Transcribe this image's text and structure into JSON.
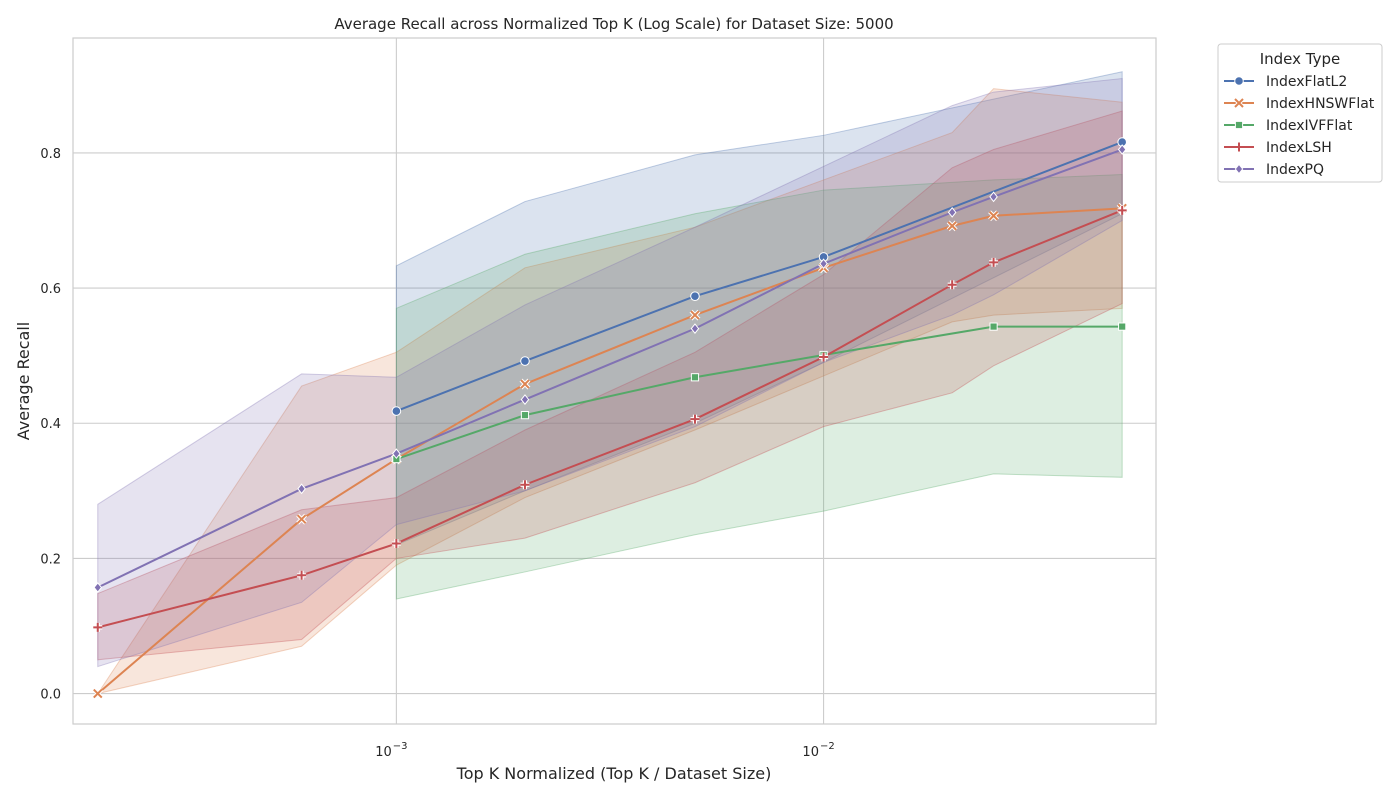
{
  "chart_data": {
    "type": "line",
    "title": "Average Recall across Normalized Top K (Log Scale) for Dataset Size: 5000",
    "xlabel": "Top K Normalized (Top K / Dataset Size)",
    "ylabel": "Average Recall",
    "xscale": "log",
    "xlim": [
      0.000175,
      0.06
    ],
    "ylim": [
      -0.045,
      0.97
    ],
    "x_ticks": [
      {
        "value": 0.001,
        "base": "10",
        "exp": "−3"
      },
      {
        "value": 0.01,
        "base": "10",
        "exp": "−2"
      }
    ],
    "y_ticks": [
      {
        "value": 0.0,
        "label": "0.0"
      },
      {
        "value": 0.2,
        "label": "0.2"
      },
      {
        "value": 0.4,
        "label": "0.4"
      },
      {
        "value": 0.6,
        "label": "0.6"
      },
      {
        "value": 0.8,
        "label": "0.8"
      }
    ],
    "grid": true,
    "legend": {
      "title": "Index Type",
      "placement": "outside-top-right"
    },
    "series": [
      {
        "name": "IndexFlatL2",
        "color": "#4c72b0",
        "marker": "circle",
        "x": [
          0.001,
          0.002,
          0.005,
          0.01,
          0.05
        ],
        "y": [
          0.418,
          0.492,
          0.588,
          0.646,
          0.816
        ],
        "lower": [
          0.22,
          0.3,
          0.4,
          0.49,
          0.71
        ],
        "upper": [
          0.633,
          0.728,
          0.797,
          0.826,
          0.92
        ]
      },
      {
        "name": "IndexHNSWFlat",
        "color": "#dd8452",
        "marker": "x",
        "x": [
          0.0002,
          0.0006,
          0.001,
          0.002,
          0.005,
          0.01,
          0.02,
          0.025,
          0.05
        ],
        "y": [
          0.0,
          0.258,
          0.347,
          0.458,
          0.56,
          0.63,
          0.692,
          0.707,
          0.718
        ],
        "lower": [
          0.0,
          0.07,
          0.19,
          0.29,
          0.39,
          0.47,
          0.55,
          0.56,
          0.57
        ],
        "upper": [
          0.0,
          0.455,
          0.505,
          0.63,
          0.69,
          0.76,
          0.83,
          0.895,
          0.875
        ]
      },
      {
        "name": "IndexIVFFlat",
        "color": "#55a868",
        "marker": "square",
        "x": [
          0.001,
          0.002,
          0.005,
          0.01,
          0.025,
          0.05
        ],
        "y": [
          0.347,
          0.412,
          0.468,
          0.501,
          0.543,
          0.543
        ],
        "lower": [
          0.14,
          0.18,
          0.235,
          0.27,
          0.325,
          0.32
        ],
        "upper": [
          0.57,
          0.65,
          0.71,
          0.745,
          0.76,
          0.768
        ]
      },
      {
        "name": "IndexLSH",
        "color": "#c44e52",
        "marker": "plus",
        "x": [
          0.0002,
          0.0006,
          0.001,
          0.002,
          0.005,
          0.01,
          0.02,
          0.025,
          0.05
        ],
        "y": [
          0.098,
          0.175,
          0.222,
          0.309,
          0.406,
          0.498,
          0.605,
          0.638,
          0.715
        ],
        "lower": [
          0.05,
          0.08,
          0.2,
          0.23,
          0.312,
          0.395,
          0.445,
          0.485,
          0.577
        ],
        "upper": [
          0.148,
          0.272,
          0.29,
          0.39,
          0.505,
          0.62,
          0.778,
          0.805,
          0.862
        ]
      },
      {
        "name": "IndexPQ",
        "color": "#8172b3",
        "marker": "diamond",
        "x": [
          0.0002,
          0.0006,
          0.001,
          0.002,
          0.005,
          0.01,
          0.02,
          0.025,
          0.05
        ],
        "y": [
          0.157,
          0.303,
          0.355,
          0.435,
          0.54,
          0.636,
          0.712,
          0.735,
          0.805
        ],
        "lower": [
          0.04,
          0.135,
          0.25,
          0.3,
          0.395,
          0.49,
          0.56,
          0.59,
          0.7
        ],
        "upper": [
          0.28,
          0.473,
          0.468,
          0.575,
          0.69,
          0.78,
          0.87,
          0.89,
          0.91
        ]
      }
    ]
  }
}
